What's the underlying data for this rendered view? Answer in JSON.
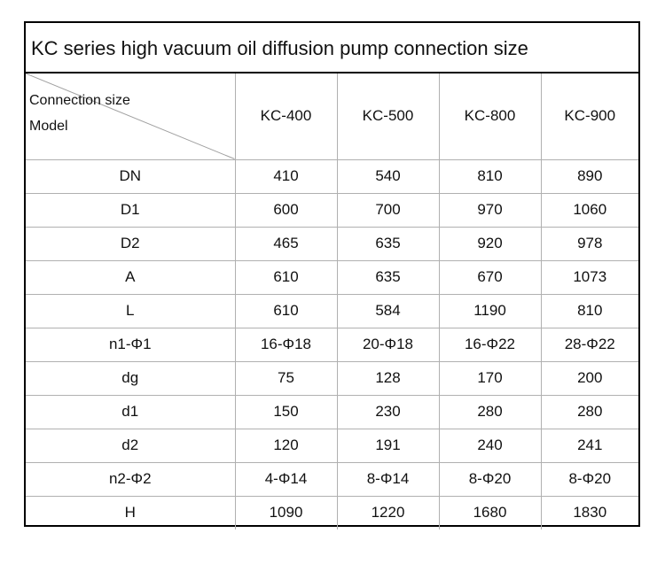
{
  "title": "KC series high vacuum oil diffusion pump connection size",
  "corner": {
    "top_label": "Connection size",
    "bottom_label": "Model"
  },
  "models": [
    "KC-400",
    "KC-500",
    "KC-800",
    "KC-900"
  ],
  "rows": [
    {
      "label": "DN",
      "values": [
        "410",
        "540",
        "810",
        "890"
      ]
    },
    {
      "label": "D1",
      "values": [
        "600",
        "700",
        "970",
        "1060"
      ]
    },
    {
      "label": "D2",
      "values": [
        "465",
        "635",
        "920",
        "978"
      ]
    },
    {
      "label": "A",
      "values": [
        "610",
        "635",
        "670",
        "1073"
      ]
    },
    {
      "label": "L",
      "values": [
        "610",
        "584",
        "1190",
        "810"
      ]
    },
    {
      "label": "n1-Φ1",
      "values": [
        "16-Φ18",
        "20-Φ18",
        "16-Φ22",
        "28-Φ22"
      ]
    },
    {
      "label": "dg",
      "values": [
        "75",
        "128",
        "170",
        "200"
      ]
    },
    {
      "label": "d1",
      "values": [
        "150",
        "230",
        "280",
        "280"
      ]
    },
    {
      "label": "d2",
      "values": [
        "120",
        "191",
        "240",
        "241"
      ]
    },
    {
      "label": "n2-Φ2",
      "values": [
        "4-Φ14",
        "8-Φ14",
        "8-Φ20",
        "8-Φ20"
      ]
    },
    {
      "label": "H",
      "values": [
        "1090",
        "1220",
        "1680",
        "1830"
      ]
    }
  ]
}
